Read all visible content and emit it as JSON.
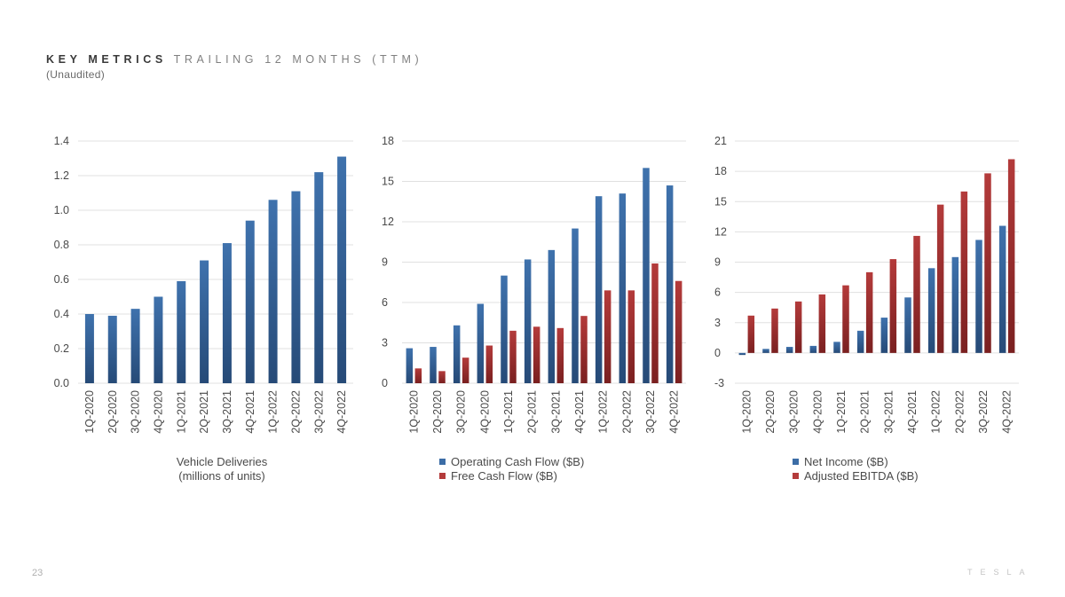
{
  "header": {
    "title_strong": "KEY METRICS",
    "title_light": "TRAILING 12 MONTHS (TTM)",
    "subtitle": "(Unaudited)"
  },
  "footer": {
    "page_number": "23",
    "brand": "TESLA"
  },
  "colors": {
    "blue": "#3c6da6",
    "blue_dark": "#284e7c",
    "red": "#b43b3b",
    "red_dark": "#7a2020",
    "grid": "#e0e0e0",
    "text": "#4a4a4a"
  },
  "chart_data": [
    {
      "type": "bar",
      "categories": [
        "1Q-2020",
        "2Q-2020",
        "3Q-2020",
        "4Q-2020",
        "1Q-2021",
        "2Q-2021",
        "3Q-2021",
        "4Q-2021",
        "1Q-2022",
        "2Q-2022",
        "3Q-2022",
        "4Q-2022"
      ],
      "series": [
        {
          "values": [
            0.4,
            0.39,
            0.43,
            0.5,
            0.59,
            0.71,
            0.81,
            0.94,
            1.06,
            1.11,
            1.22,
            1.31
          ],
          "color": "blue"
        }
      ],
      "yticks": [
        "0.0",
        "0.2",
        "0.4",
        "0.6",
        "0.8",
        "1.0",
        "1.2",
        "1.4"
      ],
      "ylim": [
        0,
        1.4
      ],
      "xlabel": [
        "Vehicle Deliveries",
        "(millions of units)"
      ],
      "grid": true
    },
    {
      "type": "bar",
      "categories": [
        "1Q-2020",
        "2Q-2020",
        "3Q-2020",
        "4Q-2020",
        "1Q-2021",
        "2Q-2021",
        "3Q-2021",
        "4Q-2021",
        "1Q-2022",
        "2Q-2022",
        "3Q-2022",
        "4Q-2022"
      ],
      "series": [
        {
          "name": "Operating Cash Flow ($B)",
          "values": [
            2.6,
            2.7,
            4.3,
            5.9,
            8.0,
            9.2,
            9.9,
            11.5,
            13.9,
            14.1,
            16.0,
            14.7
          ],
          "color": "blue"
        },
        {
          "name": "Free Cash Flow ($B)",
          "values": [
            1.1,
            0.9,
            1.9,
            2.8,
            3.9,
            4.2,
            4.1,
            5.0,
            6.9,
            6.9,
            8.9,
            7.6
          ],
          "color": "red"
        }
      ],
      "yticks": [
        "0",
        "3",
        "6",
        "9",
        "12",
        "15",
        "18"
      ],
      "ylim": [
        0,
        18
      ],
      "legend": "bottom",
      "grid": true
    },
    {
      "type": "bar",
      "categories": [
        "1Q-2020",
        "2Q-2020",
        "3Q-2020",
        "4Q-2020",
        "1Q-2021",
        "2Q-2021",
        "3Q-2021",
        "4Q-2021",
        "1Q-2022",
        "2Q-2022",
        "3Q-2022",
        "4Q-2022"
      ],
      "series": [
        {
          "name": "Net Income ($B)",
          "values": [
            -0.2,
            0.4,
            0.6,
            0.7,
            1.1,
            2.2,
            3.5,
            5.5,
            8.4,
            9.5,
            11.2,
            12.6
          ],
          "color": "blue"
        },
        {
          "name": "Adjusted EBITDA ($B)",
          "values": [
            3.7,
            4.4,
            5.1,
            5.8,
            6.7,
            8.0,
            9.3,
            11.6,
            14.7,
            16.0,
            17.8,
            19.2
          ],
          "color": "red"
        }
      ],
      "yticks": [
        "-3",
        "0",
        "3",
        "6",
        "9",
        "12",
        "15",
        "18",
        "21"
      ],
      "ylim": [
        -3,
        21
      ],
      "legend": "bottom",
      "grid": true
    }
  ]
}
